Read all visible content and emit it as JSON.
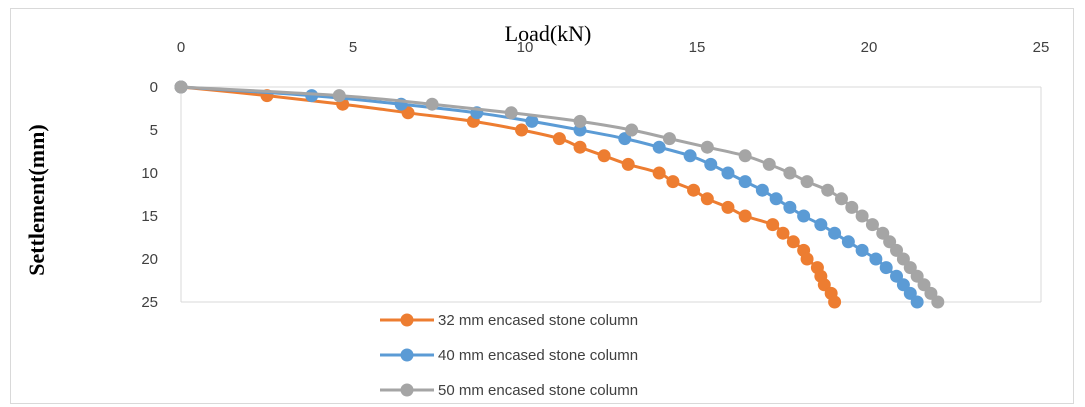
{
  "chart_data": {
    "type": "line",
    "xlabel": "Load(kN)",
    "ylabel": "Settlement(mm)",
    "xlim": [
      0,
      25
    ],
    "ylim": [
      0,
      25
    ],
    "x_ticks": [
      "0",
      "5",
      "10",
      "15",
      "20",
      "25"
    ],
    "y_ticks": [
      "0",
      "5",
      "10",
      "15",
      "20",
      "25"
    ],
    "y_inverted": true,
    "x_axis_position": "top",
    "grid": false,
    "legend_position": "bottom-center",
    "series": [
      {
        "name": "32 mm encased stone column",
        "color": "#ED7D31",
        "points": [
          [
            0,
            0
          ],
          [
            2.5,
            1
          ],
          [
            4.7,
            2
          ],
          [
            6.6,
            3
          ],
          [
            8.5,
            4
          ],
          [
            9.9,
            5
          ],
          [
            11,
            6
          ],
          [
            11.6,
            7
          ],
          [
            12.3,
            8
          ],
          [
            13,
            9
          ],
          [
            13.9,
            10
          ],
          [
            14.3,
            11
          ],
          [
            14.9,
            12
          ],
          [
            15.3,
            13
          ],
          [
            15.9,
            14
          ],
          [
            16.4,
            15
          ],
          [
            17.2,
            16
          ],
          [
            17.5,
            17
          ],
          [
            17.8,
            18
          ],
          [
            18.1,
            19
          ],
          [
            18.2,
            20
          ],
          [
            18.5,
            21
          ],
          [
            18.6,
            22
          ],
          [
            18.7,
            23
          ],
          [
            18.9,
            24
          ],
          [
            19,
            25
          ]
        ]
      },
      {
        "name": "40 mm encased stone column",
        "color": "#5B9BD5",
        "points": [
          [
            0,
            0
          ],
          [
            3.8,
            1
          ],
          [
            6.4,
            2
          ],
          [
            8.6,
            3
          ],
          [
            10.2,
            4
          ],
          [
            11.6,
            5
          ],
          [
            12.9,
            6
          ],
          [
            13.9,
            7
          ],
          [
            14.8,
            8
          ],
          [
            15.4,
            9
          ],
          [
            15.9,
            10
          ],
          [
            16.4,
            11
          ],
          [
            16.9,
            12
          ],
          [
            17.3,
            13
          ],
          [
            17.7,
            14
          ],
          [
            18.1,
            15
          ],
          [
            18.6,
            16
          ],
          [
            19.0,
            17
          ],
          [
            19.4,
            18
          ],
          [
            19.8,
            19
          ],
          [
            20.2,
            20
          ],
          [
            20.5,
            21
          ],
          [
            20.8,
            22
          ],
          [
            21.0,
            23
          ],
          [
            21.2,
            24
          ],
          [
            21.4,
            25
          ]
        ]
      },
      {
        "name": "50 mm encased stone column",
        "color": "#A5A5A5",
        "points": [
          [
            0,
            0
          ],
          [
            4.6,
            1
          ],
          [
            7.3,
            2
          ],
          [
            9.6,
            3
          ],
          [
            11.6,
            4
          ],
          [
            13.1,
            5
          ],
          [
            14.2,
            6
          ],
          [
            15.3,
            7
          ],
          [
            16.4,
            8
          ],
          [
            17.1,
            9
          ],
          [
            17.7,
            10
          ],
          [
            18.2,
            11
          ],
          [
            18.8,
            12
          ],
          [
            19.2,
            13
          ],
          [
            19.5,
            14
          ],
          [
            19.8,
            15
          ],
          [
            20.1,
            16
          ],
          [
            20.4,
            17
          ],
          [
            20.6,
            18
          ],
          [
            20.8,
            19
          ],
          [
            21.0,
            20
          ],
          [
            21.2,
            21
          ],
          [
            21.4,
            22
          ],
          [
            21.6,
            23
          ],
          [
            21.8,
            24
          ],
          [
            22,
            25
          ]
        ]
      }
    ]
  }
}
